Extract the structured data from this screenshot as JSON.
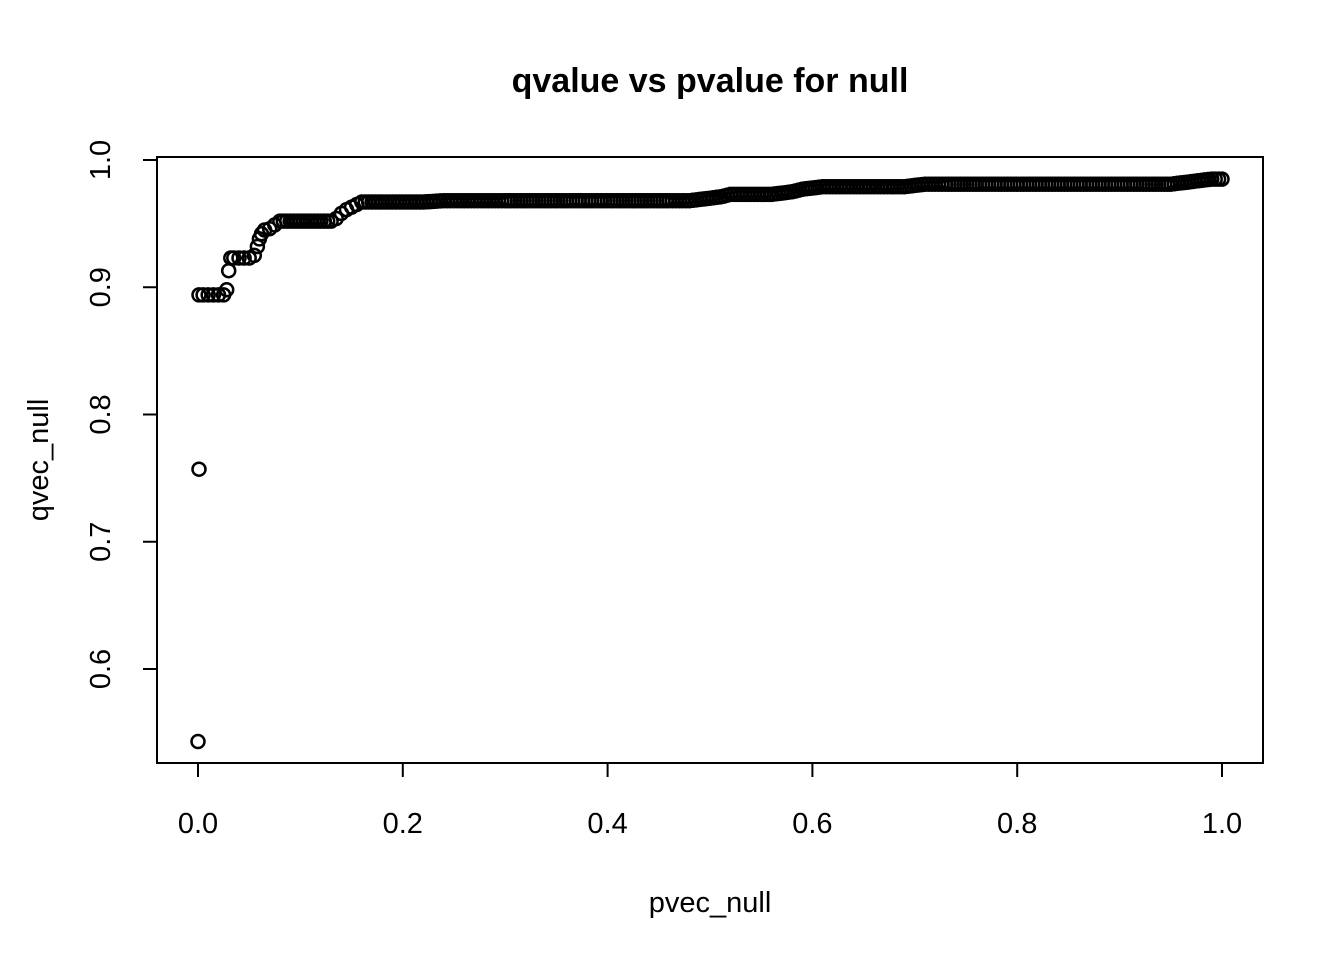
{
  "chart_data": {
    "type": "scatter",
    "title": "qvalue vs pvalue for null",
    "xlabel": "pvec_null",
    "ylabel": "qvec_null",
    "xlim": [
      -0.02,
      1.02
    ],
    "ylim": [
      0.543,
      1.0
    ],
    "xticks": [
      0.0,
      0.2,
      0.4,
      0.6,
      0.8,
      1.0
    ],
    "xtick_labels": [
      "0.0",
      "0.2",
      "0.4",
      "0.6",
      "0.8",
      "1.0"
    ],
    "yticks": [
      0.6,
      0.7,
      0.8,
      0.9,
      1.0
    ],
    "ytick_labels": [
      "0.6",
      "0.7",
      "0.8",
      "0.9",
      "1.0"
    ],
    "grid": false,
    "legend": "none",
    "marker": "open-circle",
    "series": [
      {
        "x": [
          0.0,
          0.001,
          0.001,
          0.005,
          0.01,
          0.015,
          0.02,
          0.025,
          0.028,
          0.03,
          0.032,
          0.035,
          0.04,
          0.045,
          0.05,
          0.055,
          0.058,
          0.06,
          0.062,
          0.065,
          0.07,
          0.075,
          0.08,
          0.09,
          0.1,
          0.11,
          0.12,
          0.13,
          0.135,
          0.14,
          0.145,
          0.15,
          0.155,
          0.16,
          0.18,
          0.2,
          0.22,
          0.24,
          0.26,
          0.28,
          0.3,
          0.33,
          0.36,
          0.4,
          0.43,
          0.46,
          0.48,
          0.49,
          0.5,
          0.51,
          0.52,
          0.54,
          0.56,
          0.57,
          0.58,
          0.59,
          0.6,
          0.61,
          0.63,
          0.65,
          0.67,
          0.69,
          0.7,
          0.71,
          0.73,
          0.76,
          0.8,
          0.84,
          0.88,
          0.92,
          0.95,
          0.96,
          0.97,
          0.98,
          0.99,
          1.0
        ],
        "y": [
          0.543,
          0.757,
          0.894,
          0.894,
          0.894,
          0.894,
          0.894,
          0.894,
          0.898,
          0.913,
          0.923,
          0.923,
          0.923,
          0.923,
          0.923,
          0.925,
          0.932,
          0.938,
          0.942,
          0.945,
          0.946,
          0.949,
          0.952,
          0.952,
          0.952,
          0.952,
          0.952,
          0.952,
          0.954,
          0.958,
          0.961,
          0.963,
          0.965,
          0.967,
          0.967,
          0.967,
          0.967,
          0.968,
          0.968,
          0.968,
          0.968,
          0.968,
          0.968,
          0.968,
          0.968,
          0.968,
          0.968,
          0.969,
          0.97,
          0.971,
          0.973,
          0.973,
          0.973,
          0.974,
          0.975,
          0.977,
          0.978,
          0.979,
          0.979,
          0.979,
          0.979,
          0.979,
          0.98,
          0.981,
          0.981,
          0.981,
          0.981,
          0.981,
          0.981,
          0.981,
          0.981,
          0.982,
          0.983,
          0.984,
          0.985,
          0.985
        ]
      }
    ]
  }
}
